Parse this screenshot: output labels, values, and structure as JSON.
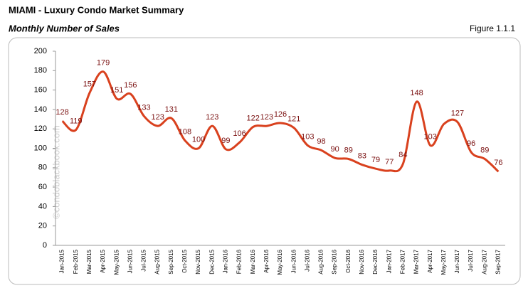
{
  "chart_data": {
    "type": "line",
    "title": "MIAMI - Luxury Condo Market Summary",
    "subtitle": "Monthly Number of Sales",
    "figure_label": "Figure 1.1.1",
    "watermark": "©condoblackbook.com",
    "categories": [
      "Jan-2015",
      "Feb-2015",
      "Mar-2015",
      "Apr-2015",
      "May-2015",
      "Jun-2015",
      "Jul-2015",
      "Aug-2015",
      "Sep-2015",
      "Oct-2015",
      "Nov-2015",
      "Dec-2015",
      "Jan-2016",
      "Feb-2016",
      "Mar-2016",
      "Apr-2016",
      "May-2016",
      "Jun-2016",
      "Jul-2016",
      "Aug-2016",
      "Sep-2016",
      "Oct-2016",
      "Nov-2016",
      "Dec-2016",
      "Jan-2017",
      "Feb-2017",
      "Mar-2017",
      "Apr-2017",
      "May-2017",
      "Jun-2017",
      "Jul-2017",
      "Aug-2017",
      "Sep-2017"
    ],
    "series": [
      {
        "name": "Monthly Number of Sales",
        "color": "#d9411e",
        "values": [
          128,
          119,
          157,
          179,
          151,
          156,
          133,
          123,
          131,
          108,
          100,
          123,
          99,
          106,
          122,
          123,
          126,
          121,
          103,
          98,
          90,
          89,
          83,
          79,
          77,
          84,
          148,
          103,
          125,
          127,
          96,
          89,
          76
        ],
        "value_labels": [
          "128",
          "119",
          "157",
          "179",
          "151",
          "156",
          "133",
          "123",
          "131",
          "108",
          "100",
          "123",
          "99",
          "106",
          "122",
          "123",
          "126",
          "121",
          "103",
          "98",
          "90",
          "89",
          "83",
          "79",
          "77",
          "84",
          "148",
          "103",
          null,
          "127",
          "96",
          "89",
          "76"
        ]
      }
    ],
    "ylim": [
      0,
      200
    ],
    "yticks": [
      0,
      20,
      40,
      60,
      80,
      100,
      120,
      140,
      160,
      180,
      200
    ],
    "grid": false
  }
}
